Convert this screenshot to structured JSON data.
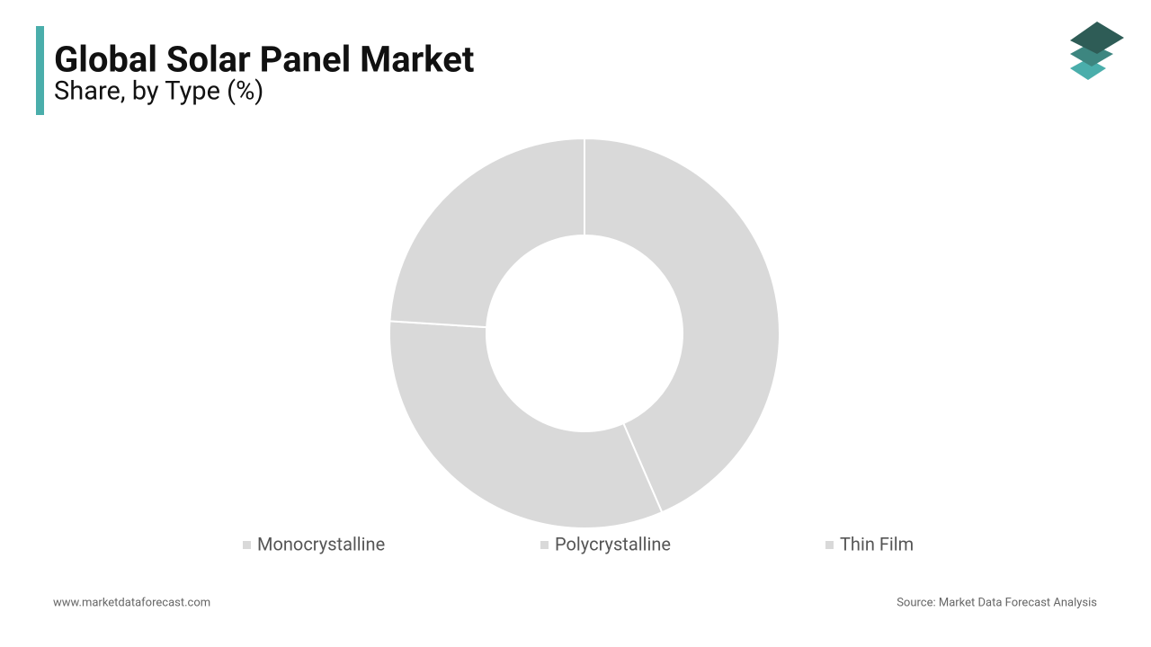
{
  "chart_data": {
    "type": "donut",
    "title": "Global Solar Panel Market",
    "subtitle": "Share, by Type (%)",
    "categories": [
      "Monocrystalline",
      "Polycrystalline",
      "Thin Film"
    ],
    "values": [
      43.5,
      32.5,
      24.0
    ],
    "colors": [
      "#d9d9d9",
      "#d9d9d9",
      "#d9d9d9"
    ],
    "website": "www.marketdataforecast.com",
    "source": "Source: Market Data Forecast Analysis"
  }
}
